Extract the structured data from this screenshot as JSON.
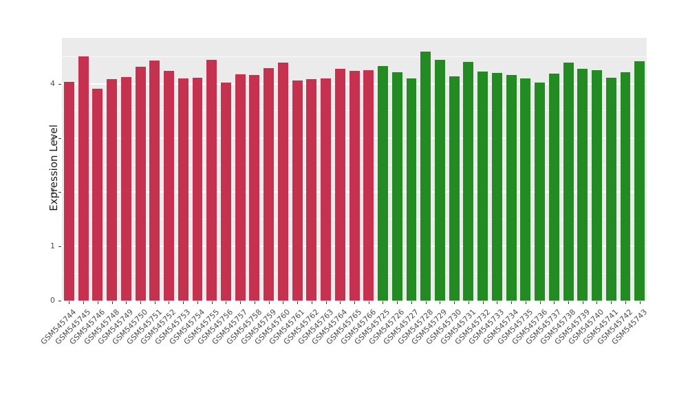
{
  "chart_data": {
    "type": "bar",
    "title": "",
    "xlabel": "",
    "ylabel": "Expression Level",
    "ylim": [
      0,
      4.85
    ],
    "yticks": [
      0,
      1,
      2,
      3,
      4
    ],
    "yticks_minor": [
      0.5,
      1.5,
      2.5,
      3.5,
      4.5
    ],
    "grid": "on",
    "legend": "none",
    "panel_background": "#ebebeb",
    "group_colors": {
      "left_group": "#c5314e",
      "right_group": "#228b22"
    },
    "left_group_count": 22,
    "categories": [
      "GSM545744",
      "GSM545745",
      "GSM545746",
      "GSM545748",
      "GSM545749",
      "GSM545750",
      "GSM545751",
      "GSM545752",
      "GSM545753",
      "GSM545754",
      "GSM545755",
      "GSM545756",
      "GSM545757",
      "GSM545758",
      "GSM545759",
      "GSM545760",
      "GSM545761",
      "GSM545762",
      "GSM545763",
      "GSM545764",
      "GSM545765",
      "GSM545766",
      "GSM545725",
      "GSM545726",
      "GSM545727",
      "GSM545728",
      "GSM545729",
      "GSM545730",
      "GSM545731",
      "GSM545732",
      "GSM545733",
      "GSM545734",
      "GSM545735",
      "GSM545736",
      "GSM545737",
      "GSM545738",
      "GSM545739",
      "GSM545740",
      "GSM545741",
      "GSM545742",
      "GSM545743"
    ],
    "values": [
      4.04,
      4.51,
      3.91,
      4.09,
      4.13,
      4.32,
      4.43,
      4.24,
      4.1,
      4.11,
      4.45,
      4.03,
      4.18,
      4.17,
      4.29,
      4.39,
      4.06,
      4.09,
      4.1,
      4.28,
      4.24,
      4.25,
      4.33,
      4.22,
      4.1,
      4.59,
      4.45,
      4.14,
      4.41,
      4.23,
      4.2,
      4.17,
      4.1,
      4.03,
      4.19,
      4.39,
      4.28,
      4.25,
      4.11,
      4.22,
      4.42
    ]
  }
}
